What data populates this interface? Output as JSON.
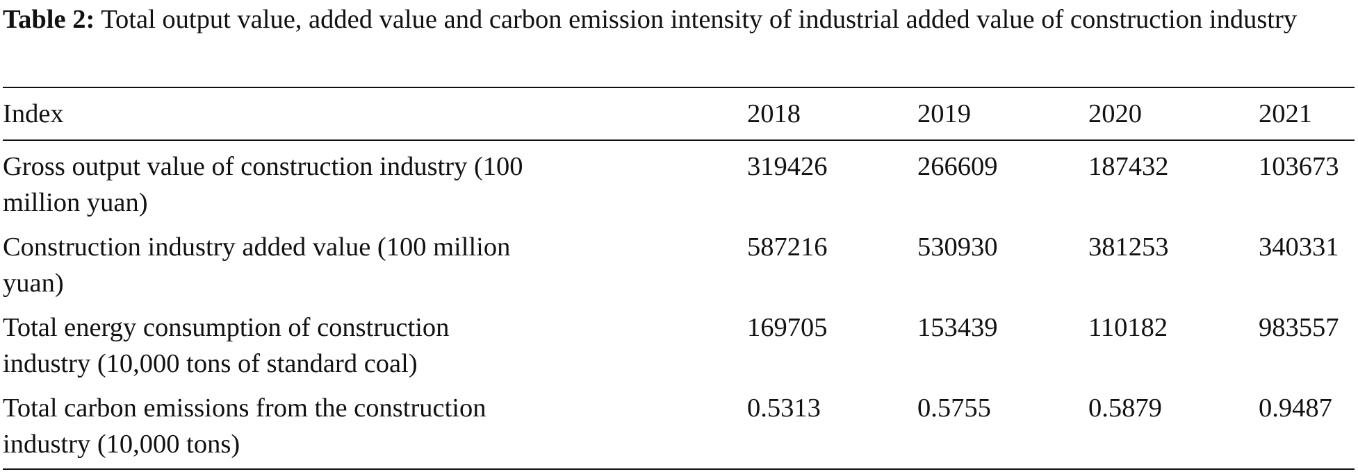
{
  "caption": {
    "label": "Table 2:",
    "text": " Total output value, added value and carbon emission intensity of industrial added value of construction industry"
  },
  "table": {
    "headers": [
      "Index",
      "2018",
      "2019",
      "2020",
      "2021"
    ],
    "rows": [
      {
        "index_line1": "Gross output value of construction industry (100",
        "index_line2": "million yuan)",
        "values": [
          "319426",
          "266609",
          "187432",
          "103673"
        ]
      },
      {
        "index_line1": "Construction industry added value (100 million",
        "index_line2": "yuan)",
        "values": [
          "587216",
          "530930",
          "381253",
          "340331"
        ]
      },
      {
        "index_line1": "Total energy consumption of construction",
        "index_line2": "industry (10,000 tons of standard coal)",
        "values": [
          "169705",
          "153439",
          "110182",
          "983557"
        ]
      },
      {
        "index_line1": "Total carbon emissions from the construction",
        "index_line2": "industry (10,000 tons)",
        "values": [
          "0.5313",
          "0.5755",
          "0.5879",
          "0.9487"
        ]
      }
    ]
  }
}
